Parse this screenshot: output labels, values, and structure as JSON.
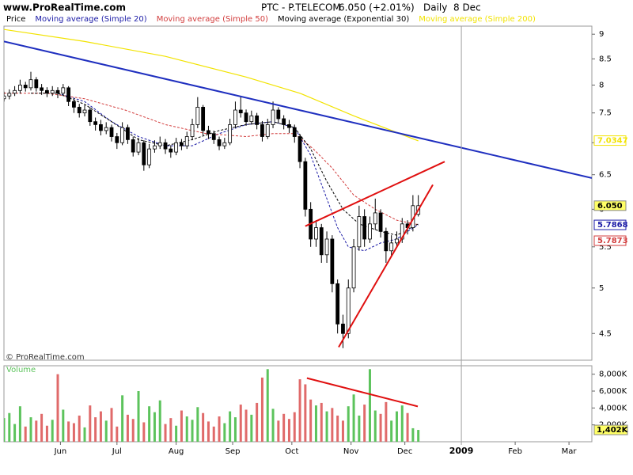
{
  "header": {
    "site": "www.ProRealTime.com",
    "symbol": "PTC - P.TELECOM",
    "quote": "6.050 (+2.01%)",
    "period": "Daily  8 Dec"
  },
  "chart_data": [
    {
      "type": "candlestick",
      "note": "© ProRealTime.com",
      "log": true,
      "xlim": [
        0,
        218.5
      ],
      "ylim": [
        4.23,
        9.17
      ],
      "yticks": [
        4.5,
        5,
        5.5,
        6,
        6.5,
        7,
        7.5,
        8,
        8.5,
        9
      ],
      "series": [
        {
          "name": "Price",
          "color": "#000000",
          "up_fill": "#ffffff",
          "down_fill": "#000000",
          "last_label": "6.050",
          "label_fill": "#ffff66",
          "x": [
            0,
            2,
            4,
            6,
            8,
            10,
            12,
            14,
            16,
            18,
            20,
            22,
            24,
            26,
            28,
            30,
            32,
            34,
            36,
            38,
            40,
            42,
            44,
            46,
            48,
            50,
            52,
            54,
            56,
            58,
            60,
            62,
            64,
            66,
            68,
            70,
            72,
            74,
            76,
            78,
            80,
            82,
            84,
            86,
            88,
            90,
            92,
            94,
            96,
            98,
            100,
            102,
            104,
            106,
            108,
            110,
            112,
            114,
            116,
            118,
            120,
            122,
            124,
            126,
            128,
            130,
            132,
            134,
            136,
            138,
            140,
            142,
            144,
            146,
            148,
            150,
            152,
            154
          ],
          "open": [
            7.75,
            7.8,
            7.85,
            7.9,
            8.0,
            7.95,
            8.1,
            7.95,
            7.9,
            7.85,
            7.9,
            7.85,
            7.95,
            7.7,
            7.6,
            7.5,
            7.55,
            7.35,
            7.3,
            7.2,
            7.25,
            7.1,
            7.0,
            7.25,
            7.05,
            6.85,
            7.0,
            6.65,
            6.9,
            6.95,
            7.0,
            6.9,
            6.85,
            7.0,
            6.95,
            7.1,
            7.3,
            7.6,
            7.2,
            7.15,
            7.05,
            6.95,
            7.0,
            7.3,
            7.55,
            7.5,
            7.35,
            7.45,
            7.3,
            7.1,
            7.3,
            7.55,
            7.4,
            7.3,
            7.25,
            7.1,
            6.7,
            6.0,
            5.6,
            5.75,
            5.4,
            5.6,
            5.05,
            4.6,
            4.5,
            5.0,
            5.5,
            5.9,
            5.6,
            5.8,
            5.95,
            5.7,
            5.45,
            5.55,
            5.6,
            5.8,
            5.75,
            5.93
          ],
          "high": [
            7.88,
            7.92,
            7.98,
            8.1,
            8.06,
            8.25,
            8.15,
            8.02,
            7.96,
            7.98,
            7.96,
            8.02,
            7.98,
            7.76,
            7.66,
            7.64,
            7.6,
            7.42,
            7.38,
            7.34,
            7.3,
            7.16,
            7.34,
            7.3,
            7.1,
            7.08,
            7.04,
            6.98,
            7.04,
            7.1,
            7.06,
            6.96,
            7.08,
            7.06,
            7.18,
            7.4,
            7.78,
            7.64,
            7.28,
            7.2,
            7.1,
            7.08,
            7.4,
            7.7,
            7.8,
            7.56,
            7.54,
            7.5,
            7.36,
            7.4,
            7.7,
            7.6,
            7.46,
            7.38,
            7.3,
            7.14,
            6.76,
            6.1,
            5.85,
            5.8,
            5.7,
            5.65,
            5.1,
            4.7,
            5.1,
            5.6,
            6.05,
            6.0,
            5.9,
            6.15,
            6.0,
            5.75,
            5.65,
            5.7,
            5.88,
            5.85,
            6.2,
            6.2
          ],
          "low": [
            7.7,
            7.74,
            7.8,
            7.84,
            7.88,
            7.9,
            7.88,
            7.82,
            7.78,
            7.8,
            7.76,
            7.8,
            7.62,
            7.5,
            7.42,
            7.44,
            7.28,
            7.2,
            7.12,
            7.14,
            7.02,
            6.9,
            6.96,
            6.98,
            6.78,
            6.8,
            6.56,
            6.6,
            6.84,
            6.9,
            6.82,
            6.76,
            6.8,
            6.88,
            6.9,
            7.04,
            7.24,
            7.12,
            7.06,
            6.98,
            6.88,
            6.9,
            6.96,
            7.24,
            7.42,
            7.28,
            7.3,
            7.22,
            7.02,
            7.06,
            7.24,
            7.32,
            7.22,
            7.16,
            7.0,
            6.6,
            5.9,
            5.5,
            5.5,
            5.3,
            5.3,
            4.95,
            4.5,
            4.35,
            4.45,
            4.95,
            5.45,
            5.5,
            5.55,
            5.72,
            5.62,
            5.3,
            5.38,
            5.5,
            5.55,
            5.66,
            5.7,
            5.9
          ],
          "close": [
            7.8,
            7.85,
            7.9,
            8.0,
            7.95,
            8.1,
            7.95,
            7.9,
            7.85,
            7.9,
            7.85,
            7.95,
            7.7,
            7.6,
            7.5,
            7.55,
            7.35,
            7.3,
            7.2,
            7.25,
            7.1,
            7.0,
            7.25,
            7.05,
            6.85,
            7.0,
            6.65,
            6.9,
            6.95,
            7.0,
            6.9,
            6.85,
            7.0,
            6.95,
            7.1,
            7.3,
            7.6,
            7.2,
            7.15,
            7.05,
            6.95,
            7.0,
            7.3,
            7.55,
            7.5,
            7.35,
            7.45,
            7.3,
            7.1,
            7.3,
            7.55,
            7.4,
            7.3,
            7.25,
            7.1,
            6.7,
            6.0,
            5.6,
            5.75,
            5.4,
            5.6,
            5.05,
            4.6,
            4.5,
            5.0,
            5.5,
            5.9,
            5.6,
            5.8,
            5.95,
            5.7,
            5.45,
            5.55,
            5.6,
            5.8,
            5.75,
            6.05,
            6.05
          ]
        },
        {
          "name": "Moving average (Simple 20)",
          "color": "#1a1aa6",
          "line_style": "dashed",
          "last_value": 5.7868,
          "x": [
            20,
            30,
            40,
            50,
            60,
            70,
            80,
            90,
            100,
            108,
            114,
            120,
            124,
            128,
            134,
            140,
            146,
            150,
            154
          ],
          "values": [
            7.85,
            7.7,
            7.35,
            7.1,
            6.95,
            6.95,
            7.15,
            7.3,
            7.35,
            7.25,
            6.8,
            6.15,
            5.75,
            5.5,
            5.45,
            5.55,
            5.6,
            5.7,
            5.79
          ]
        },
        {
          "name": "Moving average (Simple 50)",
          "color": "#d23c3c",
          "line_style": "dashed",
          "last_value": 5.7873,
          "x": [
            0,
            16,
            30,
            45,
            60,
            75,
            90,
            100,
            108,
            115,
            122,
            130,
            138,
            146,
            154
          ],
          "values": [
            7.85,
            7.85,
            7.75,
            7.55,
            7.3,
            7.15,
            7.1,
            7.15,
            7.15,
            6.9,
            6.6,
            6.2,
            6.0,
            5.85,
            5.79
          ]
        },
        {
          "name": "Moving average (Exponential 30)",
          "color": "#000000",
          "line_style": "dashed",
          "x": [
            10,
            20,
            30,
            40,
            50,
            60,
            70,
            80,
            90,
            100,
            108,
            114,
            120,
            126,
            132,
            140,
            146,
            154
          ],
          "values": [
            7.85,
            7.85,
            7.65,
            7.35,
            7.05,
            6.95,
            7.05,
            7.2,
            7.3,
            7.35,
            7.25,
            6.9,
            6.4,
            6.0,
            5.8,
            5.7,
            5.65,
            5.8
          ]
        },
        {
          "name": "Moving average (Simple 200)",
          "color": "#f2e300",
          "line_style": "solid",
          "last_value": 7.0347,
          "x": [
            0,
            30,
            60,
            90,
            110,
            130,
            154
          ],
          "values": [
            9.1,
            8.85,
            8.55,
            8.15,
            7.85,
            7.45,
            7.03
          ]
        }
      ],
      "trend_lines": [
        {
          "color": "#1f2fbf",
          "x": [
            0,
            218.5
          ],
          "values": [
            8.85,
            6.45
          ]
        },
        {
          "color": "#e01010",
          "x": [
            112,
            163.8
          ],
          "values": [
            5.77,
            6.7
          ]
        },
        {
          "color": "#e01010",
          "x": [
            124.4,
            159.4
          ],
          "values": [
            4.36,
            6.35
          ]
        }
      ]
    },
    {
      "type": "bar",
      "title": "Volume",
      "up_color": "#5cc35c",
      "down_color": "#e06a6a",
      "xlim": [
        0,
        218.5
      ],
      "ylim": [
        0,
        9000
      ],
      "yticks": [
        {
          "value": 2000,
          "label": "2,000K"
        },
        {
          "value": 4000,
          "label": "4,000K"
        },
        {
          "value": 6000,
          "label": "6,000K"
        },
        {
          "value": 8000,
          "label": "8,000K"
        }
      ],
      "xticks": [
        {
          "value": 21,
          "label": "Jun"
        },
        {
          "value": 42,
          "label": "Jul"
        },
        {
          "value": 64,
          "label": "Aug"
        },
        {
          "value": 85,
          "label": "Sep"
        },
        {
          "value": 107,
          "label": "Oct"
        },
        {
          "value": 129,
          "label": "Nov"
        },
        {
          "value": 149,
          "label": "Dec"
        },
        {
          "value": 170,
          "label": "2009",
          "bold": true
        },
        {
          "value": 190,
          "label": "Feb"
        },
        {
          "value": 210,
          "label": "Mar"
        }
      ],
      "x": [
        0,
        2,
        4,
        6,
        8,
        10,
        12,
        14,
        16,
        18,
        20,
        22,
        24,
        26,
        28,
        30,
        32,
        34,
        36,
        38,
        40,
        42,
        44,
        46,
        48,
        50,
        52,
        54,
        56,
        58,
        60,
        62,
        64,
        66,
        68,
        70,
        72,
        74,
        76,
        78,
        80,
        82,
        84,
        86,
        88,
        90,
        92,
        94,
        96,
        98,
        100,
        102,
        104,
        106,
        108,
        110,
        112,
        114,
        116,
        118,
        120,
        122,
        124,
        126,
        128,
        130,
        132,
        134,
        136,
        138,
        140,
        142,
        144,
        146,
        148,
        150,
        152,
        154
      ],
      "values": [
        2800,
        3400,
        2100,
        4200,
        1800,
        2900,
        2500,
        3300,
        1900,
        2600,
        8000,
        3800,
        2400,
        2200,
        3100,
        1700,
        4300,
        2900,
        3600,
        2500,
        4000,
        1800,
        5500,
        3200,
        2700,
        6000,
        2300,
        4200,
        3500,
        4900,
        2100,
        2800,
        1900,
        3700,
        3000,
        2600,
        4100,
        3400,
        2400,
        1800,
        3000,
        2200,
        3600,
        2900,
        4400,
        3800,
        3200,
        4600,
        7600,
        8600,
        3900,
        2500,
        3300,
        2700,
        3500,
        7400,
        6800,
        5000,
        4300,
        4600,
        3600,
        4000,
        3100,
        2500,
        4200,
        5600,
        3100,
        4400,
        8600,
        3700,
        3300,
        4700,
        2500,
        3600,
        4300,
        3400,
        1600,
        1402
      ],
      "last_label": "1,402K",
      "label_fill": "#ffff66",
      "trend_lines": [
        {
          "color": "#e01010",
          "x": [
            112.6,
            153.8
          ],
          "values": [
            7535,
            4186
          ]
        }
      ]
    }
  ]
}
